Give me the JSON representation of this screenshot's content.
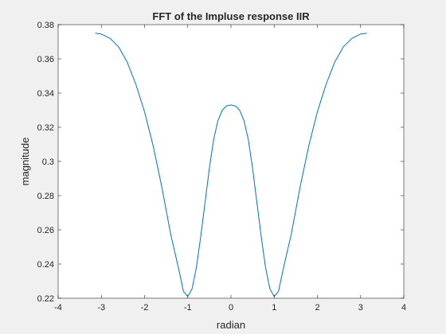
{
  "chart_data": {
    "type": "line",
    "title": "FFT of the Impluse response IIR",
    "xlabel": "radian",
    "ylabel": "magnitude",
    "xlim": [
      -4,
      4
    ],
    "ylim": [
      0.22,
      0.38
    ],
    "xticks": [
      -4,
      -3,
      -2,
      -1,
      0,
      1,
      2,
      3,
      4
    ],
    "xtick_labels": [
      "-4",
      "-3",
      "-2",
      "-1",
      "0",
      "1",
      "2",
      "3",
      "4"
    ],
    "yticks": [
      0.22,
      0.24,
      0.26,
      0.28,
      0.3,
      0.32,
      0.34,
      0.36,
      0.38
    ],
    "ytick_labels": [
      "0.22",
      "0.24",
      "0.26",
      "0.28",
      "0.3",
      "0.32",
      "0.34",
      "0.36",
      "0.38"
    ],
    "grid": false,
    "line_color": "#0072bd",
    "series": [
      {
        "x": [
          -3.1416,
          -3.0,
          -2.8,
          -2.6,
          -2.4,
          -2.2,
          -2.0,
          -1.8,
          -1.6,
          -1.4,
          -1.2,
          -1.1,
          -1.0,
          -0.9,
          -0.8,
          -0.7,
          -0.6,
          -0.5,
          -0.4,
          -0.3,
          -0.2,
          -0.1,
          0.0,
          0.1,
          0.2,
          0.3,
          0.4,
          0.5,
          0.6,
          0.7,
          0.8,
          0.9,
          1.0,
          1.1,
          1.2,
          1.4,
          1.6,
          1.8,
          2.0,
          2.2,
          2.4,
          2.6,
          2.8,
          3.0,
          3.1416
        ],
        "values": [
          0.375,
          0.3745,
          0.372,
          0.367,
          0.358,
          0.345,
          0.329,
          0.309,
          0.285,
          0.258,
          0.236,
          0.224,
          0.221,
          0.2255,
          0.238,
          0.256,
          0.276,
          0.296,
          0.313,
          0.324,
          0.33,
          0.3325,
          0.333,
          0.3325,
          0.33,
          0.324,
          0.313,
          0.296,
          0.276,
          0.256,
          0.238,
          0.2255,
          0.221,
          0.224,
          0.236,
          0.258,
          0.285,
          0.309,
          0.329,
          0.345,
          0.358,
          0.367,
          0.372,
          0.3745,
          0.375
        ]
      }
    ]
  }
}
